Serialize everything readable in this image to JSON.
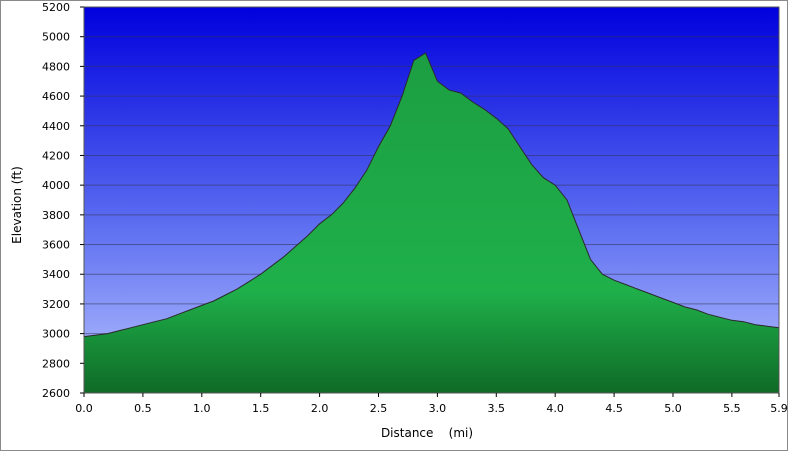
{
  "chart_data": {
    "type": "area",
    "xlabel": "Distance    (mi)",
    "ylabel": "Elevation (ft)",
    "xlim": [
      0,
      5.9
    ],
    "ylim": [
      2600,
      5200
    ],
    "x_ticks": [
      0.0,
      0.5,
      1.0,
      1.5,
      2.0,
      2.5,
      3.0,
      3.5,
      4.0,
      4.5,
      5.0,
      5.5,
      5.9
    ],
    "x_tick_labels": [
      "0.0",
      "0.5",
      "1.0",
      "1.5",
      "2.0",
      "2.5",
      "3.0",
      "3.5",
      "4.0",
      "4.5",
      "5.0",
      "5.5",
      "5.9"
    ],
    "y_ticks": [
      2600,
      2800,
      3000,
      3200,
      3400,
      3600,
      3800,
      4000,
      4200,
      4400,
      4600,
      4800,
      5000,
      5200
    ],
    "y_tick_labels": [
      "2600",
      "2800",
      "3000",
      "3200",
      "3400",
      "3600",
      "3800",
      "4000",
      "4200",
      "4400",
      "4600",
      "4800",
      "5000",
      "5200"
    ],
    "grid": true,
    "legend": "none",
    "colors": {
      "plot_bg_top": "#0000dd",
      "plot_bg_bottom": "#b8c4ff",
      "area_fill": "#1fb04a",
      "area_fill_dark": "#0f6a26",
      "line": "#2a2a2a",
      "grid": "#333355"
    },
    "series": [
      {
        "x": [
          0.0,
          0.1,
          0.2,
          0.3,
          0.4,
          0.5,
          0.6,
          0.7,
          0.8,
          0.9,
          1.0,
          1.1,
          1.2,
          1.3,
          1.4,
          1.5,
          1.6,
          1.7,
          1.8,
          1.9,
          2.0,
          2.1,
          2.2,
          2.3,
          2.4,
          2.5,
          2.6,
          2.7,
          2.8,
          2.9,
          3.0,
          3.1,
          3.2,
          3.3,
          3.4,
          3.5,
          3.6,
          3.7,
          3.8,
          3.9,
          4.0,
          4.1,
          4.2,
          4.3,
          4.4,
          4.5,
          4.6,
          4.7,
          4.8,
          4.9,
          5.0,
          5.1,
          5.2,
          5.3,
          5.4,
          5.5,
          5.6,
          5.7,
          5.8,
          5.9
        ],
        "y": [
          2980,
          2990,
          3000,
          3020,
          3040,
          3060,
          3080,
          3100,
          3130,
          3160,
          3190,
          3220,
          3260,
          3300,
          3350,
          3400,
          3460,
          3520,
          3590,
          3660,
          3740,
          3800,
          3880,
          3980,
          4100,
          4260,
          4400,
          4600,
          4840,
          4890,
          4700,
          4640,
          4620,
          4560,
          4510,
          4450,
          4380,
          4260,
          4140,
          4050,
          4000,
          3900,
          3700,
          3500,
          3400,
          3360,
          3330,
          3300,
          3270,
          3240,
          3210,
          3180,
          3160,
          3130,
          3110,
          3090,
          3080,
          3060,
          3050,
          3040
        ]
      }
    ]
  }
}
